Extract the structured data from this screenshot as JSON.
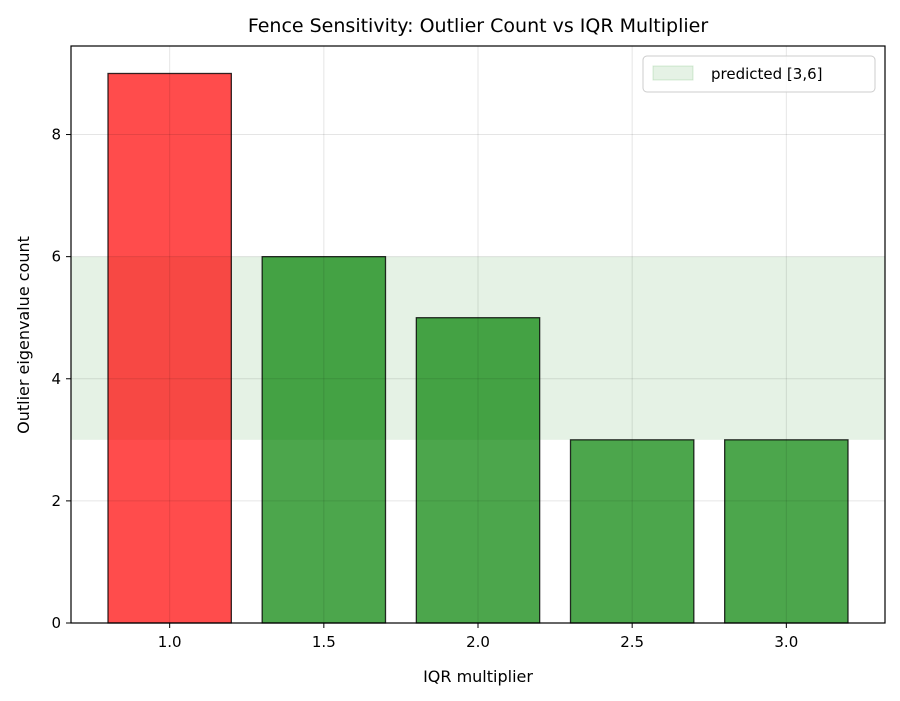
{
  "chart_data": {
    "type": "bar",
    "title": "Fence Sensitivity: Outlier Count vs IQR Multiplier",
    "xlabel": "IQR multiplier",
    "ylabel": "Outlier eigenvalue count",
    "categories": [
      "1.0",
      "1.5",
      "2.0",
      "2.5",
      "3.0"
    ],
    "values": [
      9,
      6,
      5,
      3,
      3
    ],
    "bar_colors": [
      "#ff0000",
      "#008000",
      "#008000",
      "#008000",
      "#008000"
    ],
    "bar_alpha": 0.7,
    "ylim": [
      0,
      9.45
    ],
    "yticks": [
      0,
      2,
      4,
      6,
      8
    ],
    "grid": true,
    "band": {
      "label": "predicted [3,6]",
      "y0": 3,
      "y1": 6,
      "color": "#008000",
      "alpha": 0.1
    },
    "legend_position": "top-right"
  }
}
